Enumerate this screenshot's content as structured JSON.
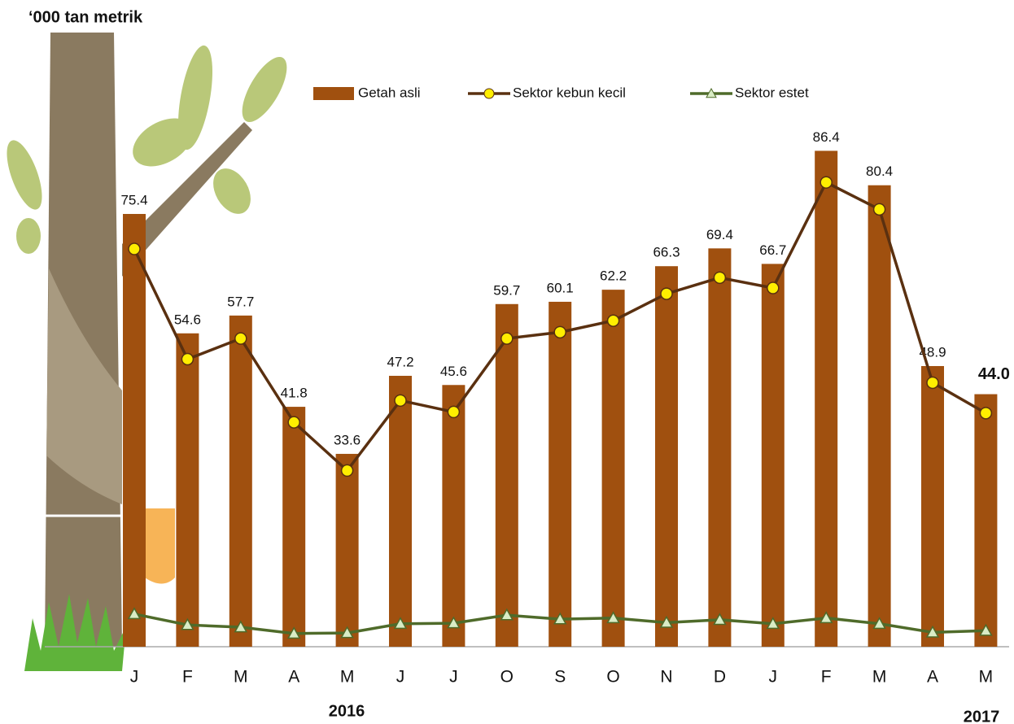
{
  "chart_data": {
    "type": "bar",
    "axis_title": "‘000 tan metrik",
    "categories": [
      "J",
      "F",
      "M",
      "A",
      "M",
      "J",
      "J",
      "O",
      "S",
      "O",
      "N",
      "D",
      "J",
      "F",
      "M",
      "A",
      "M"
    ],
    "year_labels": [
      "2016",
      "2017"
    ],
    "ylim": [
      0,
      90
    ],
    "series": [
      {
        "name": "Getah asli",
        "type": "bar",
        "color": "#a0500f",
        "values": [
          75.4,
          54.6,
          57.7,
          41.8,
          33.6,
          47.2,
          45.6,
          59.7,
          60.1,
          62.2,
          66.3,
          69.4,
          66.7,
          86.4,
          80.4,
          48.9,
          44.0
        ],
        "value_labels": [
          "75.4",
          "54.6",
          "57.7",
          "41.8",
          "33.6",
          "47.2",
          "45.6",
          "59.7",
          "60.1",
          "62.2",
          "66.3",
          "69.4",
          "66.7",
          "86.4",
          "80.4",
          "48.9",
          "44.0"
        ]
      },
      {
        "name": "Sektor kebun kecil",
        "type": "line",
        "color": "#5a3010",
        "marker": "circle",
        "marker_color": "#ffee00",
        "values": [
          69.3,
          50.1,
          53.7,
          39.1,
          30.7,
          42.9,
          40.9,
          53.7,
          54.8,
          56.8,
          61.5,
          64.3,
          62.5,
          80.9,
          76.2,
          46.0,
          40.7
        ]
      },
      {
        "name": "Sektor estet",
        "type": "line",
        "color": "#4f6b2a",
        "marker": "triangle",
        "marker_color": "#d9ecc5",
        "values": [
          5.7,
          3.8,
          3.4,
          2.3,
          2.4,
          4.0,
          4.1,
          5.5,
          4.8,
          5.0,
          4.2,
          4.7,
          4.0,
          5.0,
          4.0,
          2.5,
          2.8
        ]
      }
    ]
  }
}
